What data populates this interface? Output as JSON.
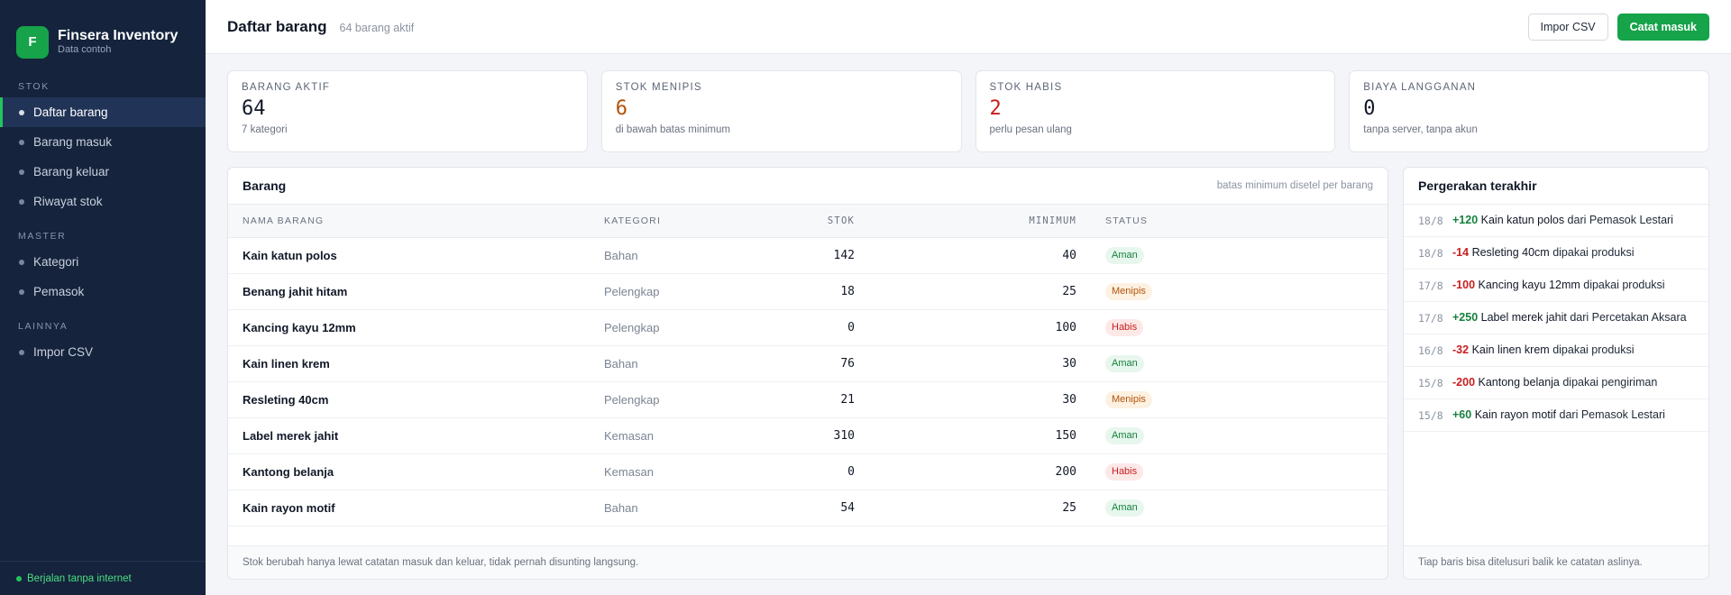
{
  "app": {
    "logo_letter": "F",
    "title": "Finsera Inventory",
    "subtitle": "Data contoh",
    "status": "Berjalan tanpa internet",
    "accent": "#16a34a",
    "sidebar_bg": "#15233d"
  },
  "nav": {
    "sections": [
      {
        "label": "STOK",
        "items": [
          "Daftar barang",
          "Barang masuk",
          "Barang keluar",
          "Riwayat stok"
        ]
      },
      {
        "label": "MASTER",
        "items": [
          "Kategori",
          "Pemasok"
        ]
      },
      {
        "label": "LAINNYA",
        "items": [
          "Impor CSV"
        ]
      }
    ],
    "active": "Daftar barang"
  },
  "header": {
    "title": "Daftar barang",
    "subtitle": "64 barang aktif",
    "import_label": "Impor CSV",
    "record_label": "Catat masuk"
  },
  "cards": [
    {
      "label": "BARANG AKTIF",
      "value": "64",
      "hint": "7 kategori",
      "tone": "normal"
    },
    {
      "label": "STOK MENIPIS",
      "value": "6",
      "hint": "di bawah batas minimum",
      "tone": "warn"
    },
    {
      "label": "STOK HABIS",
      "value": "2",
      "hint": "perlu pesan ulang",
      "tone": "danger"
    },
    {
      "label": "BIAYA LANGGANAN",
      "value": "0",
      "hint": "tanpa server, tanpa akun",
      "tone": "normal"
    }
  ],
  "items_panel": {
    "title": "Barang",
    "note": "batas minimum disetel per barang",
    "columns": [
      "NAMA BARANG",
      "KATEGORI",
      "STOK",
      "MINIMUM",
      "STATUS"
    ],
    "rows": [
      {
        "name": "Kain katun polos",
        "category": "Bahan",
        "stock": "142",
        "min": "40",
        "status": "Aman",
        "tone": "ok"
      },
      {
        "name": "Benang jahit hitam",
        "category": "Pelengkap",
        "stock": "18",
        "min": "25",
        "status": "Menipis",
        "tone": "low"
      },
      {
        "name": "Kancing kayu 12mm",
        "category": "Pelengkap",
        "stock": "0",
        "min": "100",
        "status": "Habis",
        "tone": "out"
      },
      {
        "name": "Kain linen krem",
        "category": "Bahan",
        "stock": "76",
        "min": "30",
        "status": "Aman",
        "tone": "ok"
      },
      {
        "name": "Resleting 40cm",
        "category": "Pelengkap",
        "stock": "21",
        "min": "30",
        "status": "Menipis",
        "tone": "low"
      },
      {
        "name": "Label merek jahit",
        "category": "Kemasan",
        "stock": "310",
        "min": "150",
        "status": "Aman",
        "tone": "ok"
      },
      {
        "name": "Kantong belanja",
        "category": "Kemasan",
        "stock": "0",
        "min": "200",
        "status": "Habis",
        "tone": "out"
      },
      {
        "name": "Kain rayon motif",
        "category": "Bahan",
        "stock": "54",
        "min": "25",
        "status": "Aman",
        "tone": "ok"
      }
    ],
    "footer": "Stok berubah hanya lewat catatan masuk dan keluar, tidak pernah disunting langsung."
  },
  "moves_panel": {
    "title": "Pergerakan terakhir",
    "moves": [
      {
        "date": "18/8",
        "qty": "+120",
        "dir": "in",
        "item": "Kain katun polos",
        "rest": " dari Pemasok Lestari"
      },
      {
        "date": "18/8",
        "qty": "-14",
        "dir": "out",
        "item": "Resleting 40cm",
        "rest": " dipakai produksi"
      },
      {
        "date": "17/8",
        "qty": "-100",
        "dir": "out",
        "item": "Kancing kayu 12mm",
        "rest": " dipakai produksi"
      },
      {
        "date": "17/8",
        "qty": "+250",
        "dir": "in",
        "item": "Label merek jahit",
        "rest": " dari Percetakan Aksara"
      },
      {
        "date": "16/8",
        "qty": "-32",
        "dir": "out",
        "item": "Kain linen krem",
        "rest": " dipakai produksi"
      },
      {
        "date": "15/8",
        "qty": "-200",
        "dir": "out",
        "item": "Kantong belanja",
        "rest": " dipakai pengiriman"
      },
      {
        "date": "15/8",
        "qty": "+60",
        "dir": "in",
        "item": "Kain rayon motif",
        "rest": " dari Pemasok Lestari"
      }
    ],
    "footer": "Tiap baris bisa ditelusuri balik ke catatan aslinya."
  }
}
